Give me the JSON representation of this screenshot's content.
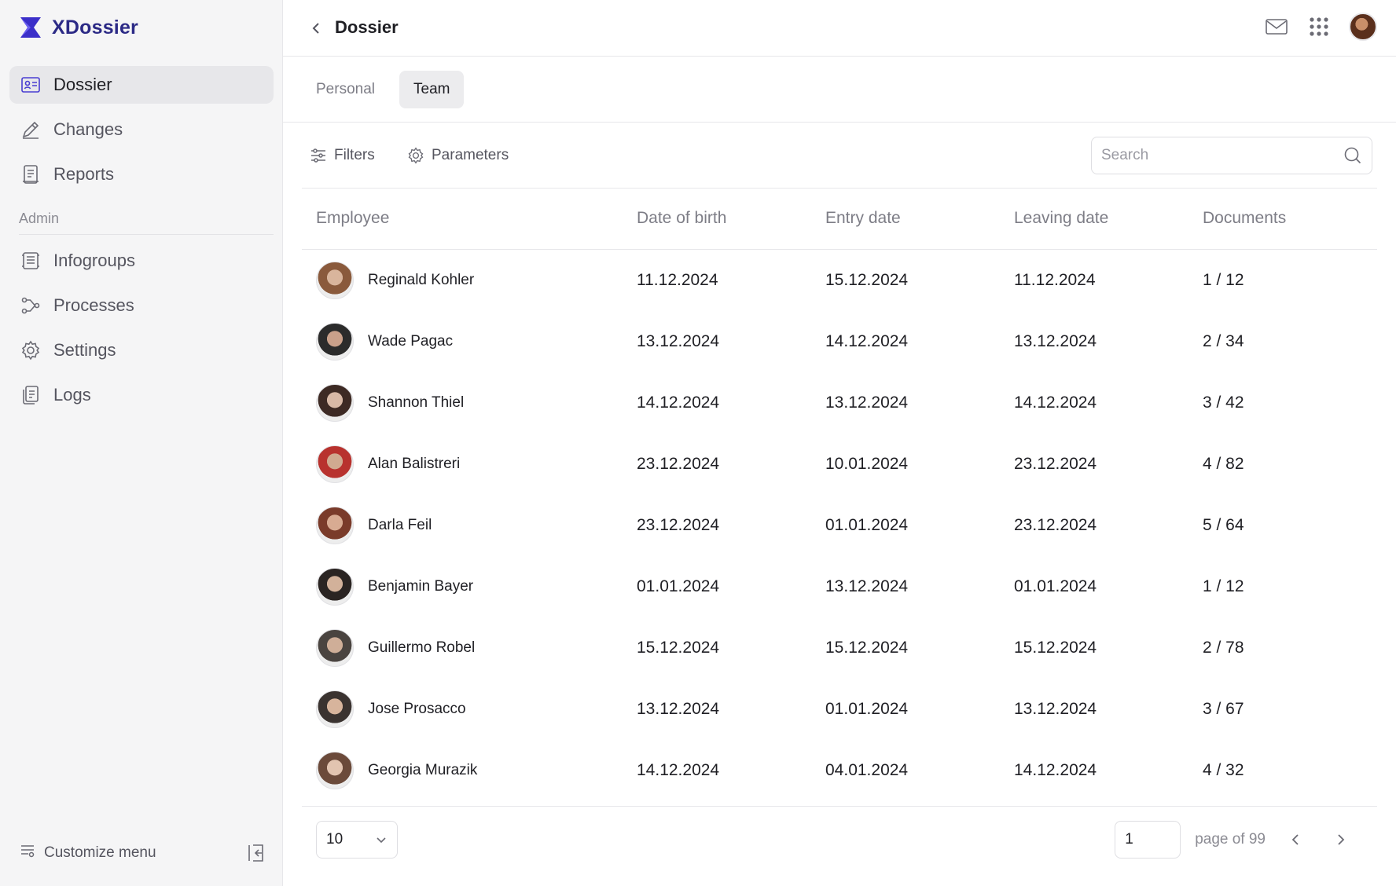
{
  "app": {
    "brand": "XDossier",
    "accent": "#4a3fd1",
    "brand_color": "#2c2a86"
  },
  "sidebar": {
    "items": [
      {
        "label": "Dossier",
        "icon": "id-card-icon",
        "active": true
      },
      {
        "label": "Changes",
        "icon": "pencil-icon"
      },
      {
        "label": "Reports",
        "icon": "report-icon"
      }
    ],
    "admin_label": "Admin",
    "admin_items": [
      {
        "label": "Infogroups",
        "icon": "infogroups-icon"
      },
      {
        "label": "Processes",
        "icon": "processes-icon"
      },
      {
        "label": "Settings",
        "icon": "gear-icon"
      },
      {
        "label": "Logs",
        "icon": "logs-icon"
      }
    ],
    "customize_label": "Customize menu"
  },
  "header": {
    "title": "Dossier"
  },
  "tabs": [
    {
      "label": "Personal",
      "active": false
    },
    {
      "label": "Team",
      "active": true
    }
  ],
  "toolbar": {
    "filters_label": "Filters",
    "parameters_label": "Parameters",
    "search_placeholder": "Search"
  },
  "table": {
    "columns": [
      "Employee",
      "Date of birth",
      "Entry date",
      "Leaving date",
      "Documents"
    ],
    "rows": [
      {
        "name": "Reginald Kohler",
        "dob": "11.12.2024",
        "entry": "15.12.2024",
        "leaving": "11.12.2024",
        "docs": "1 / 12"
      },
      {
        "name": "Wade Pagac",
        "dob": "13.12.2024",
        "entry": "14.12.2024",
        "leaving": "13.12.2024",
        "docs": "2 / 34"
      },
      {
        "name": "Shannon Thiel",
        "dob": "14.12.2024",
        "entry": "13.12.2024",
        "leaving": "14.12.2024",
        "docs": "3 / 42"
      },
      {
        "name": "Alan Balistreri",
        "dob": "23.12.2024",
        "entry": "10.01.2024",
        "leaving": "23.12.2024",
        "docs": "4 / 82"
      },
      {
        "name": "Darla Feil",
        "dob": "23.12.2024",
        "entry": "01.01.2024",
        "leaving": "23.12.2024",
        "docs": "5 / 64"
      },
      {
        "name": "Benjamin Bayer",
        "dob": "01.01.2024",
        "entry": "13.12.2024",
        "leaving": "01.01.2024",
        "docs": "1 / 12"
      },
      {
        "name": "Guillermo Robel",
        "dob": "15.12.2024",
        "entry": "15.12.2024",
        "leaving": "15.12.2024",
        "docs": "2 / 78"
      },
      {
        "name": "Jose Prosacco",
        "dob": "13.12.2024",
        "entry": "01.01.2024",
        "leaving": "13.12.2024",
        "docs": "3 / 67"
      },
      {
        "name": "Georgia Murazik",
        "dob": "14.12.2024",
        "entry": "04.01.2024",
        "leaving": "14.12.2024",
        "docs": "4 / 32"
      }
    ]
  },
  "pagination": {
    "page_size": "10",
    "current_page": "1",
    "page_of_label": "page of 99"
  }
}
